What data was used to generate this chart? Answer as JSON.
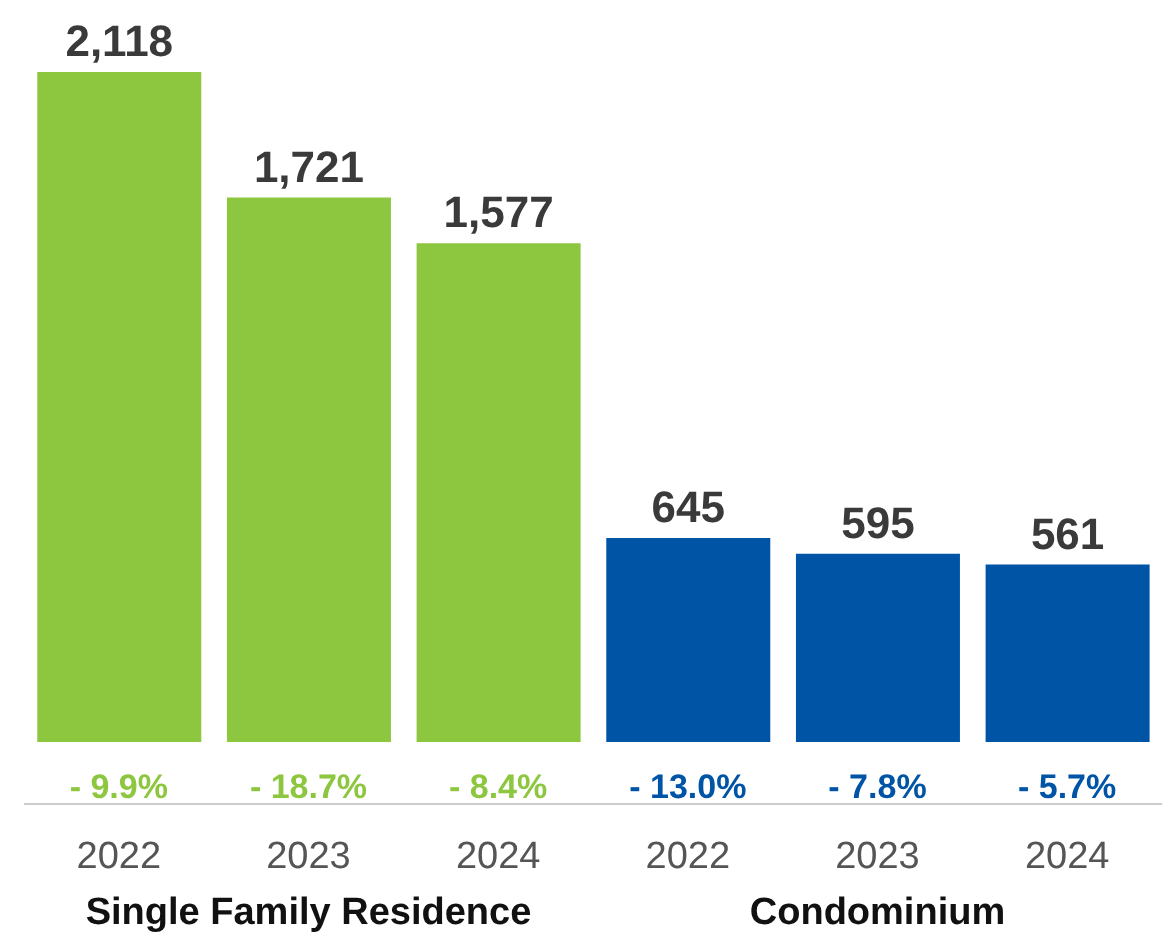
{
  "chart_data": {
    "type": "bar",
    "categories": [
      "2022",
      "2023",
      "2024",
      "2022",
      "2023",
      "2024"
    ],
    "values": [
      2118,
      1721,
      1577,
      645,
      595,
      561
    ],
    "colors": [
      "#8dc63f",
      "#8dc63f",
      "#8dc63f",
      "#0054a6",
      "#0054a6",
      "#0054a6"
    ],
    "value_labels": [
      "2,118",
      "1,721",
      "1,577",
      "645",
      "595",
      "561"
    ],
    "annotations": [
      "- 9.9%",
      "- 18.7%",
      "- 8.4%",
      "- 13.0%",
      "- 7.8%",
      "- 5.7%",
      "Single Family Residence",
      "Condominium"
    ]
  }
}
